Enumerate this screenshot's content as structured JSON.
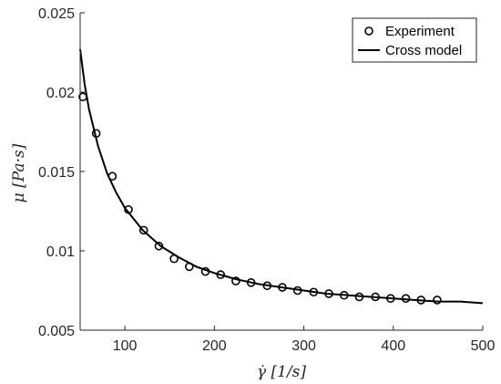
{
  "chart_data": {
    "type": "scatter",
    "title": "",
    "xlabel": "γ̇ [1/s]",
    "ylabel": "μ [Pa·s]",
    "xlim": [
      50,
      500
    ],
    "ylim": [
      0.005,
      0.025
    ],
    "xticks": [
      100,
      200,
      300,
      400,
      500
    ],
    "yticks": [
      0.005,
      0.01,
      0.015,
      0.02,
      0.025
    ],
    "xtick_labels": [
      "100",
      "200",
      "300",
      "400",
      "500"
    ],
    "ytick_labels": [
      "0.005",
      "0.01",
      "0.015",
      "0.02",
      "0.025"
    ],
    "grid": false,
    "legend_position": "top-right",
    "series": [
      {
        "name": "Experiment",
        "style": "markers-circle",
        "color": "#000000",
        "points": [
          [
            53,
            0.0197
          ],
          [
            68,
            0.0174
          ],
          [
            86,
            0.0147
          ],
          [
            104,
            0.0126
          ],
          [
            121,
            0.0113
          ],
          [
            138,
            0.0103
          ],
          [
            155,
            0.0095
          ],
          [
            172,
            0.009
          ],
          [
            190,
            0.0087
          ],
          [
            207,
            0.0085
          ],
          [
            224,
            0.0081
          ],
          [
            241,
            0.008
          ],
          [
            259,
            0.0078
          ],
          [
            276,
            0.0077
          ],
          [
            293,
            0.0075
          ],
          [
            311,
            0.0074
          ],
          [
            328,
            0.0073
          ],
          [
            345,
            0.0072
          ],
          [
            362,
            0.0071
          ],
          [
            380,
            0.0071
          ],
          [
            397,
            0.007
          ],
          [
            414,
            0.007
          ],
          [
            431,
            0.0069
          ],
          [
            449,
            0.0069
          ]
        ]
      },
      {
        "name": "Cross model",
        "style": "line",
        "color": "#000000",
        "points": [
          [
            50,
            0.0227
          ],
          [
            55,
            0.0205
          ],
          [
            60,
            0.0189
          ],
          [
            70,
            0.0166
          ],
          [
            80,
            0.0149
          ],
          [
            90,
            0.0137
          ],
          [
            100,
            0.0127
          ],
          [
            120,
            0.0113
          ],
          [
            140,
            0.0103
          ],
          [
            160,
            0.0096
          ],
          [
            180,
            0.009
          ],
          [
            200,
            0.0086
          ],
          [
            225,
            0.0082
          ],
          [
            250,
            0.0079
          ],
          [
            275,
            0.0077
          ],
          [
            300,
            0.0075
          ],
          [
            325,
            0.0073
          ],
          [
            350,
            0.0072
          ],
          [
            375,
            0.0071
          ],
          [
            400,
            0.007
          ],
          [
            425,
            0.0069
          ],
          [
            450,
            0.0068
          ],
          [
            475,
            0.0068
          ],
          [
            500,
            0.0067
          ]
        ]
      }
    ]
  }
}
